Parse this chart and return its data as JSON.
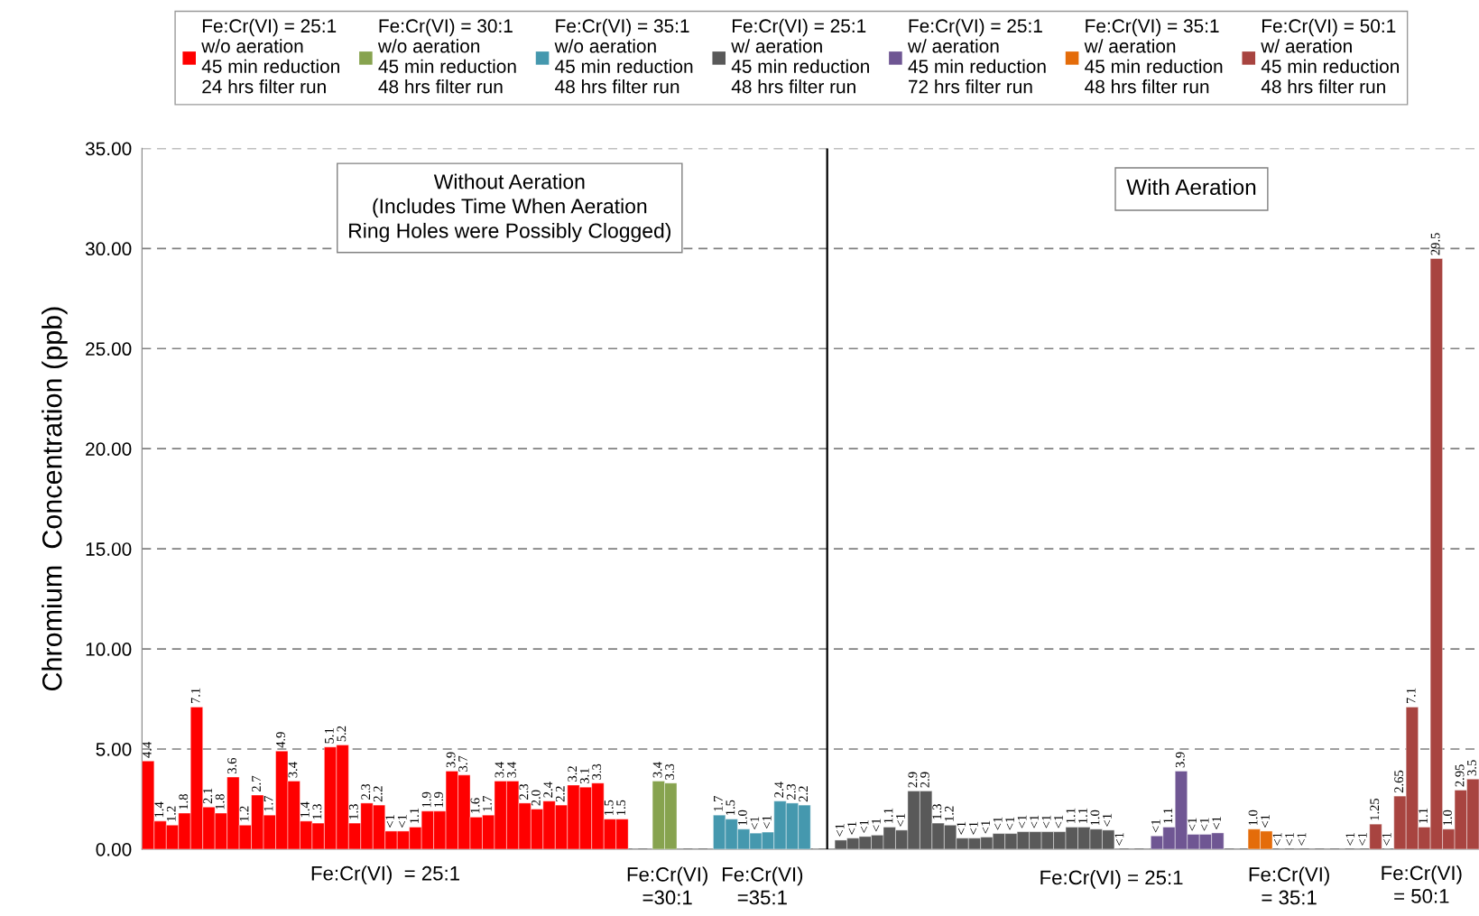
{
  "chart_data": {
    "type": "bar",
    "ylabel": "Chromium  Concentration (ppb)",
    "categories": [
      null,
      null,
      null,
      null,
      null,
      null,
      null,
      null,
      null,
      null,
      null,
      null,
      null,
      null,
      null,
      null,
      null,
      null,
      null,
      null,
      null,
      null,
      null,
      null,
      null,
      null,
      null,
      null,
      null,
      null,
      null,
      null,
      null,
      null,
      null,
      null,
      null,
      null,
      null,
      null,
      null,
      null,
      null,
      null,
      null,
      null,
      null,
      null,
      null,
      null,
      null,
      null,
      null,
      null,
      null,
      null,
      null,
      null,
      null,
      null,
      null,
      null,
      null,
      null,
      null,
      null,
      null,
      null,
      null,
      null,
      null,
      null,
      null,
      null,
      null,
      null,
      null,
      null,
      null,
      null,
      null,
      null,
      null,
      null,
      null,
      null,
      null,
      null,
      null,
      null,
      null,
      null,
      null,
      null,
      null,
      null,
      null,
      null,
      null,
      null,
      null,
      null,
      null,
      null,
      null,
      null,
      null,
      null,
      null,
      null
    ],
    "series": [
      {
        "name": "Fe:Cr(VI) = 25:1\nw/o aeration\n45 min reduction\n24 hrs filter run",
        "color": "#ff0000",
        "values": [
          4.4,
          1.4,
          1.2,
          1.8,
          7.1,
          2.1,
          1.8,
          3.6,
          1.2,
          2.7,
          1.7,
          4.9,
          3.4,
          1.4,
          1.3,
          5.1,
          5.2,
          1.3,
          2.3,
          2.2,
          0.9,
          0.9,
          1.1,
          1.9,
          1.9,
          3.9,
          3.7,
          1.6,
          1.7,
          3.4,
          3.4,
          2.3,
          2.0,
          2.4,
          2.2,
          3.2,
          3.1,
          3.3,
          1.5,
          1.5,
          null,
          null,
          null,
          null,
          null,
          null,
          null,
          null,
          null,
          null,
          null,
          null,
          null,
          null,
          null,
          null,
          null,
          null,
          null,
          null,
          null,
          null,
          null,
          null,
          null,
          null,
          null,
          null,
          null,
          null,
          null,
          null,
          null,
          null,
          null,
          null,
          null,
          null,
          null,
          null,
          null,
          null,
          null,
          null,
          null,
          null,
          null,
          null,
          null,
          null,
          null,
          null,
          null,
          null,
          null,
          null,
          null,
          null,
          null,
          null,
          null,
          null,
          null,
          null,
          null,
          null,
          null,
          null,
          null,
          null
        ],
        "value_labels": [
          "4.4",
          "1.4",
          "1.2",
          "1.8",
          "7.1",
          "2.1",
          "1.8",
          "3.6",
          "1.2",
          "2.7",
          "1.7",
          "4.9",
          "3.4",
          "1.4",
          "1.3",
          "5.1",
          "5.2",
          "1.3",
          "2.3",
          "2.2",
          "<1",
          "<1",
          "1.1",
          "1.9",
          "1.9",
          "3.9",
          "3.7",
          "1.6",
          "1.7",
          "3.4",
          "3.4",
          "2.3",
          "2.0",
          "2.4",
          "2.2",
          "3.2",
          "3.1",
          "3.3",
          "1.5",
          "1.5",
          null,
          null,
          null,
          null,
          null,
          null,
          null,
          null,
          null,
          null,
          null,
          null,
          null,
          null,
          null,
          null,
          null,
          null,
          null,
          null,
          null,
          null,
          null,
          null,
          null,
          null,
          null,
          null,
          null,
          null,
          null,
          null,
          null,
          null,
          null,
          null,
          null,
          null,
          null,
          null,
          null,
          null,
          null,
          null,
          null,
          null,
          null,
          null,
          null,
          null,
          null,
          null,
          null,
          null,
          null,
          null,
          null,
          null,
          null,
          null,
          null,
          null,
          null,
          null,
          null,
          null,
          null,
          null,
          null,
          null
        ]
      },
      {
        "name": "Fe:Cr(VI) = 30:1\nw/o aeration\n45 min reduction\n48 hrs filter run",
        "color": "#87a34f",
        "values": [
          null,
          null,
          null,
          null,
          null,
          null,
          null,
          null,
          null,
          null,
          null,
          null,
          null,
          null,
          null,
          null,
          null,
          null,
          null,
          null,
          null,
          null,
          null,
          null,
          null,
          null,
          null,
          null,
          null,
          null,
          null,
          null,
          null,
          null,
          null,
          null,
          null,
          null,
          null,
          null,
          null,
          null,
          3.4,
          3.3,
          null,
          null,
          null,
          null,
          null,
          null,
          null,
          null,
          null,
          null,
          null,
          null,
          null,
          null,
          null,
          null,
          null,
          null,
          null,
          null,
          null,
          null,
          null,
          null,
          null,
          null,
          null,
          null,
          null,
          null,
          null,
          null,
          null,
          null,
          null,
          null,
          null,
          null,
          null,
          null,
          null,
          null,
          null,
          null,
          null,
          null,
          null,
          null,
          null,
          null,
          null,
          null,
          null,
          null,
          null,
          null,
          null,
          null,
          null,
          null,
          null,
          null,
          null,
          null,
          null,
          null
        ],
        "value_labels": [
          null,
          null,
          null,
          null,
          null,
          null,
          null,
          null,
          null,
          null,
          null,
          null,
          null,
          null,
          null,
          null,
          null,
          null,
          null,
          null,
          null,
          null,
          null,
          null,
          null,
          null,
          null,
          null,
          null,
          null,
          null,
          null,
          null,
          null,
          null,
          null,
          null,
          null,
          null,
          null,
          null,
          null,
          "3.4",
          "3.3",
          null,
          null,
          null,
          null,
          null,
          null,
          null,
          null,
          null,
          null,
          null,
          null,
          null,
          null,
          null,
          null,
          null,
          null,
          null,
          null,
          null,
          null,
          null,
          null,
          null,
          null,
          null,
          null,
          null,
          null,
          null,
          null,
          null,
          null,
          null,
          null,
          null,
          null,
          null,
          null,
          null,
          null,
          null,
          null,
          null,
          null,
          null,
          null,
          null,
          null,
          null,
          null,
          null,
          null,
          null,
          null,
          null,
          null,
          null,
          null,
          null,
          null,
          null,
          null,
          null,
          null
        ]
      },
      {
        "name": "Fe:Cr(VI) = 35:1\nw/o aeration\n45 min reduction\n48 hrs filter run",
        "color": "#4598ae",
        "values": [
          null,
          null,
          null,
          null,
          null,
          null,
          null,
          null,
          null,
          null,
          null,
          null,
          null,
          null,
          null,
          null,
          null,
          null,
          null,
          null,
          null,
          null,
          null,
          null,
          null,
          null,
          null,
          null,
          null,
          null,
          null,
          null,
          null,
          null,
          null,
          null,
          null,
          null,
          null,
          null,
          null,
          null,
          null,
          null,
          null,
          null,
          null,
          1.7,
          1.5,
          1.0,
          0.8,
          0.85,
          2.4,
          2.3,
          2.2,
          null,
          null,
          null,
          null,
          null,
          null,
          null,
          null,
          null,
          null,
          null,
          null,
          null,
          null,
          null,
          null,
          null,
          null,
          null,
          null,
          null,
          null,
          null,
          null,
          null,
          null,
          null,
          null,
          null,
          null,
          null,
          null,
          null,
          null,
          null,
          null,
          null,
          null,
          null,
          null,
          null,
          null,
          null,
          null,
          null,
          null,
          null,
          null,
          null,
          null,
          null,
          null,
          null,
          null,
          null
        ],
        "value_labels": [
          null,
          null,
          null,
          null,
          null,
          null,
          null,
          null,
          null,
          null,
          null,
          null,
          null,
          null,
          null,
          null,
          null,
          null,
          null,
          null,
          null,
          null,
          null,
          null,
          null,
          null,
          null,
          null,
          null,
          null,
          null,
          null,
          null,
          null,
          null,
          null,
          null,
          null,
          null,
          null,
          null,
          null,
          null,
          null,
          null,
          null,
          null,
          "1.7",
          "1.5",
          "1.0",
          "<1",
          "<1",
          "2.4",
          "2.3",
          "2.2",
          null,
          null,
          null,
          null,
          null,
          null,
          null,
          null,
          null,
          null,
          null,
          null,
          null,
          null,
          null,
          null,
          null,
          null,
          null,
          null,
          null,
          null,
          null,
          null,
          null,
          null,
          null,
          null,
          null,
          null,
          null,
          null,
          null,
          null,
          null,
          null,
          null,
          null,
          null,
          null,
          null,
          null,
          null,
          null,
          null,
          null,
          null,
          null,
          null,
          null,
          null,
          null,
          null,
          null,
          null
        ]
      },
      {
        "name": "Fe:Cr(VI) = 25:1\nw/ aeration\n45 min reduction\n48 hrs filter run",
        "color": "#595959",
        "values": [
          null,
          null,
          null,
          null,
          null,
          null,
          null,
          null,
          null,
          null,
          null,
          null,
          null,
          null,
          null,
          null,
          null,
          null,
          null,
          null,
          null,
          null,
          null,
          null,
          null,
          null,
          null,
          null,
          null,
          null,
          null,
          null,
          null,
          null,
          null,
          null,
          null,
          null,
          null,
          null,
          null,
          null,
          null,
          null,
          null,
          null,
          null,
          null,
          null,
          null,
          null,
          null,
          null,
          null,
          null,
          null,
          null,
          0.45,
          0.55,
          0.63,
          0.7,
          1.1,
          0.95,
          2.9,
          2.9,
          1.3,
          1.2,
          0.55,
          0.55,
          0.6,
          0.78,
          0.78,
          0.87,
          0.87,
          0.87,
          0.87,
          1.1,
          1.1,
          1.0,
          0.95,
          null,
          null,
          null,
          null,
          null,
          null,
          null,
          null,
          null,
          null,
          null,
          null,
          null,
          null,
          null,
          null,
          null,
          null,
          null,
          null,
          null,
          null,
          null,
          null,
          null,
          null,
          null,
          null,
          null,
          null
        ],
        "value_labels": [
          null,
          null,
          null,
          null,
          null,
          null,
          null,
          null,
          null,
          null,
          null,
          null,
          null,
          null,
          null,
          null,
          null,
          null,
          null,
          null,
          null,
          null,
          null,
          null,
          null,
          null,
          null,
          null,
          null,
          null,
          null,
          null,
          null,
          null,
          null,
          null,
          null,
          null,
          null,
          null,
          null,
          null,
          null,
          null,
          null,
          null,
          null,
          null,
          null,
          null,
          null,
          null,
          null,
          null,
          null,
          null,
          null,
          "<1",
          "<1",
          "<1",
          "<1",
          "1.1",
          "<1",
          "2.9",
          "2.9",
          "1.3",
          "1.2",
          "<1",
          "<1",
          "<1",
          "<1",
          "<1",
          "<1",
          "<1",
          "<1",
          "<1",
          "1.1",
          "1.1",
          "1.0",
          "<1",
          "<1",
          null,
          null,
          null,
          null,
          null,
          null,
          null,
          null,
          null,
          null,
          null,
          null,
          null,
          null,
          null,
          null,
          null,
          null,
          null,
          null,
          null,
          null,
          null,
          null,
          null,
          null,
          null,
          null,
          null
        ]
      },
      {
        "name": "Fe:Cr(VI) = 25:1\nw/ aeration\n45 min reduction\n72 hrs filter run",
        "color": "#6f5693",
        "values": [
          null,
          null,
          null,
          null,
          null,
          null,
          null,
          null,
          null,
          null,
          null,
          null,
          null,
          null,
          null,
          null,
          null,
          null,
          null,
          null,
          null,
          null,
          null,
          null,
          null,
          null,
          null,
          null,
          null,
          null,
          null,
          null,
          null,
          null,
          null,
          null,
          null,
          null,
          null,
          null,
          null,
          null,
          null,
          null,
          null,
          null,
          null,
          null,
          null,
          null,
          null,
          null,
          null,
          null,
          null,
          null,
          null,
          null,
          null,
          null,
          null,
          null,
          null,
          null,
          null,
          null,
          null,
          null,
          null,
          null,
          null,
          null,
          null,
          null,
          null,
          null,
          null,
          null,
          null,
          null,
          null,
          null,
          null,
          0.66,
          1.1,
          3.9,
          0.74,
          0.74,
          0.81,
          null,
          null,
          null,
          null,
          null,
          null,
          null,
          null,
          null,
          null,
          null,
          null,
          null,
          null,
          null,
          null,
          null,
          null,
          null,
          null,
          null
        ],
        "value_labels": [
          null,
          null,
          null,
          null,
          null,
          null,
          null,
          null,
          null,
          null,
          null,
          null,
          null,
          null,
          null,
          null,
          null,
          null,
          null,
          null,
          null,
          null,
          null,
          null,
          null,
          null,
          null,
          null,
          null,
          null,
          null,
          null,
          null,
          null,
          null,
          null,
          null,
          null,
          null,
          null,
          null,
          null,
          null,
          null,
          null,
          null,
          null,
          null,
          null,
          null,
          null,
          null,
          null,
          null,
          null,
          null,
          null,
          null,
          null,
          null,
          null,
          null,
          null,
          null,
          null,
          null,
          null,
          null,
          null,
          null,
          null,
          null,
          null,
          null,
          null,
          null,
          null,
          null,
          null,
          null,
          null,
          null,
          null,
          "<1",
          "1.1",
          "3.9",
          "<1",
          "<1",
          "<1",
          null,
          null,
          null,
          null,
          null,
          null,
          null,
          null,
          null,
          null,
          null,
          null,
          null,
          null,
          null,
          null,
          null,
          null,
          null,
          null,
          null
        ]
      },
      {
        "name": "Fe:Cr(VI) = 35:1\nw/ aeration\n45 min reduction\n48 hrs filter run",
        "color": "#e46c0a",
        "values": [
          null,
          null,
          null,
          null,
          null,
          null,
          null,
          null,
          null,
          null,
          null,
          null,
          null,
          null,
          null,
          null,
          null,
          null,
          null,
          null,
          null,
          null,
          null,
          null,
          null,
          null,
          null,
          null,
          null,
          null,
          null,
          null,
          null,
          null,
          null,
          null,
          null,
          null,
          null,
          null,
          null,
          null,
          null,
          null,
          null,
          null,
          null,
          null,
          null,
          null,
          null,
          null,
          null,
          null,
          null,
          null,
          null,
          null,
          null,
          null,
          null,
          null,
          null,
          null,
          null,
          null,
          null,
          null,
          null,
          null,
          null,
          null,
          null,
          null,
          null,
          null,
          null,
          null,
          null,
          null,
          null,
          null,
          null,
          null,
          null,
          null,
          null,
          null,
          null,
          null,
          null,
          1.0,
          0.9,
          null,
          null,
          null,
          null,
          null,
          null,
          null,
          null,
          null,
          null,
          null,
          null,
          null,
          null,
          null,
          null,
          null
        ],
        "value_labels": [
          null,
          null,
          null,
          null,
          null,
          null,
          null,
          null,
          null,
          null,
          null,
          null,
          null,
          null,
          null,
          null,
          null,
          null,
          null,
          null,
          null,
          null,
          null,
          null,
          null,
          null,
          null,
          null,
          null,
          null,
          null,
          null,
          null,
          null,
          null,
          null,
          null,
          null,
          null,
          null,
          null,
          null,
          null,
          null,
          null,
          null,
          null,
          null,
          null,
          null,
          null,
          null,
          null,
          null,
          null,
          null,
          null,
          null,
          null,
          null,
          null,
          null,
          null,
          null,
          null,
          null,
          null,
          null,
          null,
          null,
          null,
          null,
          null,
          null,
          null,
          null,
          null,
          null,
          null,
          null,
          null,
          null,
          null,
          null,
          null,
          null,
          null,
          null,
          null,
          null,
          null,
          "1.0",
          "<1",
          "<1",
          "<1",
          "<1",
          null,
          null,
          null,
          null,
          null,
          null,
          null,
          null,
          null,
          null,
          null,
          null,
          null,
          null
        ]
      },
      {
        "name": "Fe:Cr(VI) = 50:1\nw/ aeration\n45 min reduction\n48 hrs filter run",
        "color": "#a84440",
        "values": [
          null,
          null,
          null,
          null,
          null,
          null,
          null,
          null,
          null,
          null,
          null,
          null,
          null,
          null,
          null,
          null,
          null,
          null,
          null,
          null,
          null,
          null,
          null,
          null,
          null,
          null,
          null,
          null,
          null,
          null,
          null,
          null,
          null,
          null,
          null,
          null,
          null,
          null,
          null,
          null,
          null,
          null,
          null,
          null,
          null,
          null,
          null,
          null,
          null,
          null,
          null,
          null,
          null,
          null,
          null,
          null,
          null,
          null,
          null,
          null,
          null,
          null,
          null,
          null,
          null,
          null,
          null,
          null,
          null,
          null,
          null,
          null,
          null,
          null,
          null,
          null,
          null,
          null,
          null,
          null,
          null,
          null,
          null,
          null,
          null,
          null,
          null,
          null,
          null,
          null,
          null,
          null,
          null,
          null,
          null,
          null,
          null,
          null,
          null,
          null,
          null,
          1.25,
          null,
          2.65,
          7.1,
          1.1,
          29.5,
          1.0,
          2.95,
          3.5
        ],
        "value_labels": [
          null,
          null,
          null,
          null,
          null,
          null,
          null,
          null,
          null,
          null,
          null,
          null,
          null,
          null,
          null,
          null,
          null,
          null,
          null,
          null,
          null,
          null,
          null,
          null,
          null,
          null,
          null,
          null,
          null,
          null,
          null,
          null,
          null,
          null,
          null,
          null,
          null,
          null,
          null,
          null,
          null,
          null,
          null,
          null,
          null,
          null,
          null,
          null,
          null,
          null,
          null,
          null,
          null,
          null,
          null,
          null,
          null,
          null,
          null,
          null,
          null,
          null,
          null,
          null,
          null,
          null,
          null,
          null,
          null,
          null,
          null,
          null,
          null,
          null,
          null,
          null,
          null,
          null,
          null,
          null,
          null,
          null,
          null,
          null,
          null,
          null,
          null,
          null,
          null,
          null,
          null,
          null,
          null,
          null,
          null,
          null,
          null,
          null,
          null,
          "<1",
          "<1",
          "1.25",
          "<1",
          "2.65",
          "7.1",
          "1.1",
          "29.5",
          "1.0",
          "2.95",
          "3.5"
        ]
      }
    ],
    "ylim": [
      0,
      35
    ],
    "yticks": [
      {
        "value": 0,
        "label": "0.00"
      },
      {
        "value": 5,
        "label": "5.00"
      },
      {
        "value": 10,
        "label": "10.00"
      },
      {
        "value": 15,
        "label": "15.00"
      },
      {
        "value": 20,
        "label": "20.00"
      },
      {
        "value": 25,
        "label": "25.00"
      },
      {
        "value": 30,
        "label": "30.00"
      },
      {
        "value": 35,
        "label": "35.00"
      }
    ],
    "grid": "y",
    "legend": "top",
    "tick_labels": "y",
    "annotations": [
      "Without Aeration\n(Includes Time When Aeration\nRing Holes were Possibly Clogged)",
      "With Aeration",
      "Fe:Cr(VI)  = 25:1",
      "Fe:Cr(VI)\n=30:1",
      "Fe:Cr(VI)\n=35:1",
      "Fe:Cr(VI) = 25:1",
      "Fe:Cr(VI)\n= 35:1",
      "Fe:Cr(VI)\n= 50:1"
    ]
  }
}
